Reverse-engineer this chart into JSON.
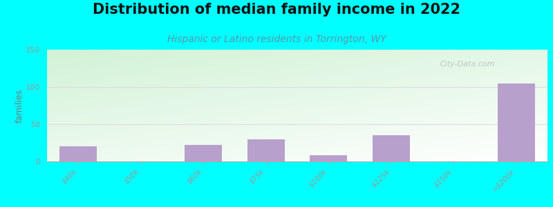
{
  "title": "Distribution of median family income in 2022",
  "subtitle": "Hispanic or Latino residents in Torrington, WY",
  "ylabel": "families",
  "background_color": "#00FFFF",
  "bar_color": "#B8A0CC",
  "categories": [
    "$40k",
    "$50k",
    "$60k",
    "$75k",
    "$100k",
    "$125k",
    "$150k",
    ">$200k"
  ],
  "values": [
    20,
    0,
    22,
    30,
    8,
    35,
    0,
    105
  ],
  "ylim": [
    0,
    150
  ],
  "yticks": [
    0,
    50,
    100,
    150
  ],
  "title_fontsize": 15,
  "subtitle_fontsize": 10,
  "ylabel_fontsize": 9,
  "watermark": "City-Data.com",
  "subtitle_color": "#5599AA",
  "title_color": "#111111",
  "tick_color": "#999999",
  "ylabel_color": "#777777",
  "gridline_color": "#dddddd"
}
